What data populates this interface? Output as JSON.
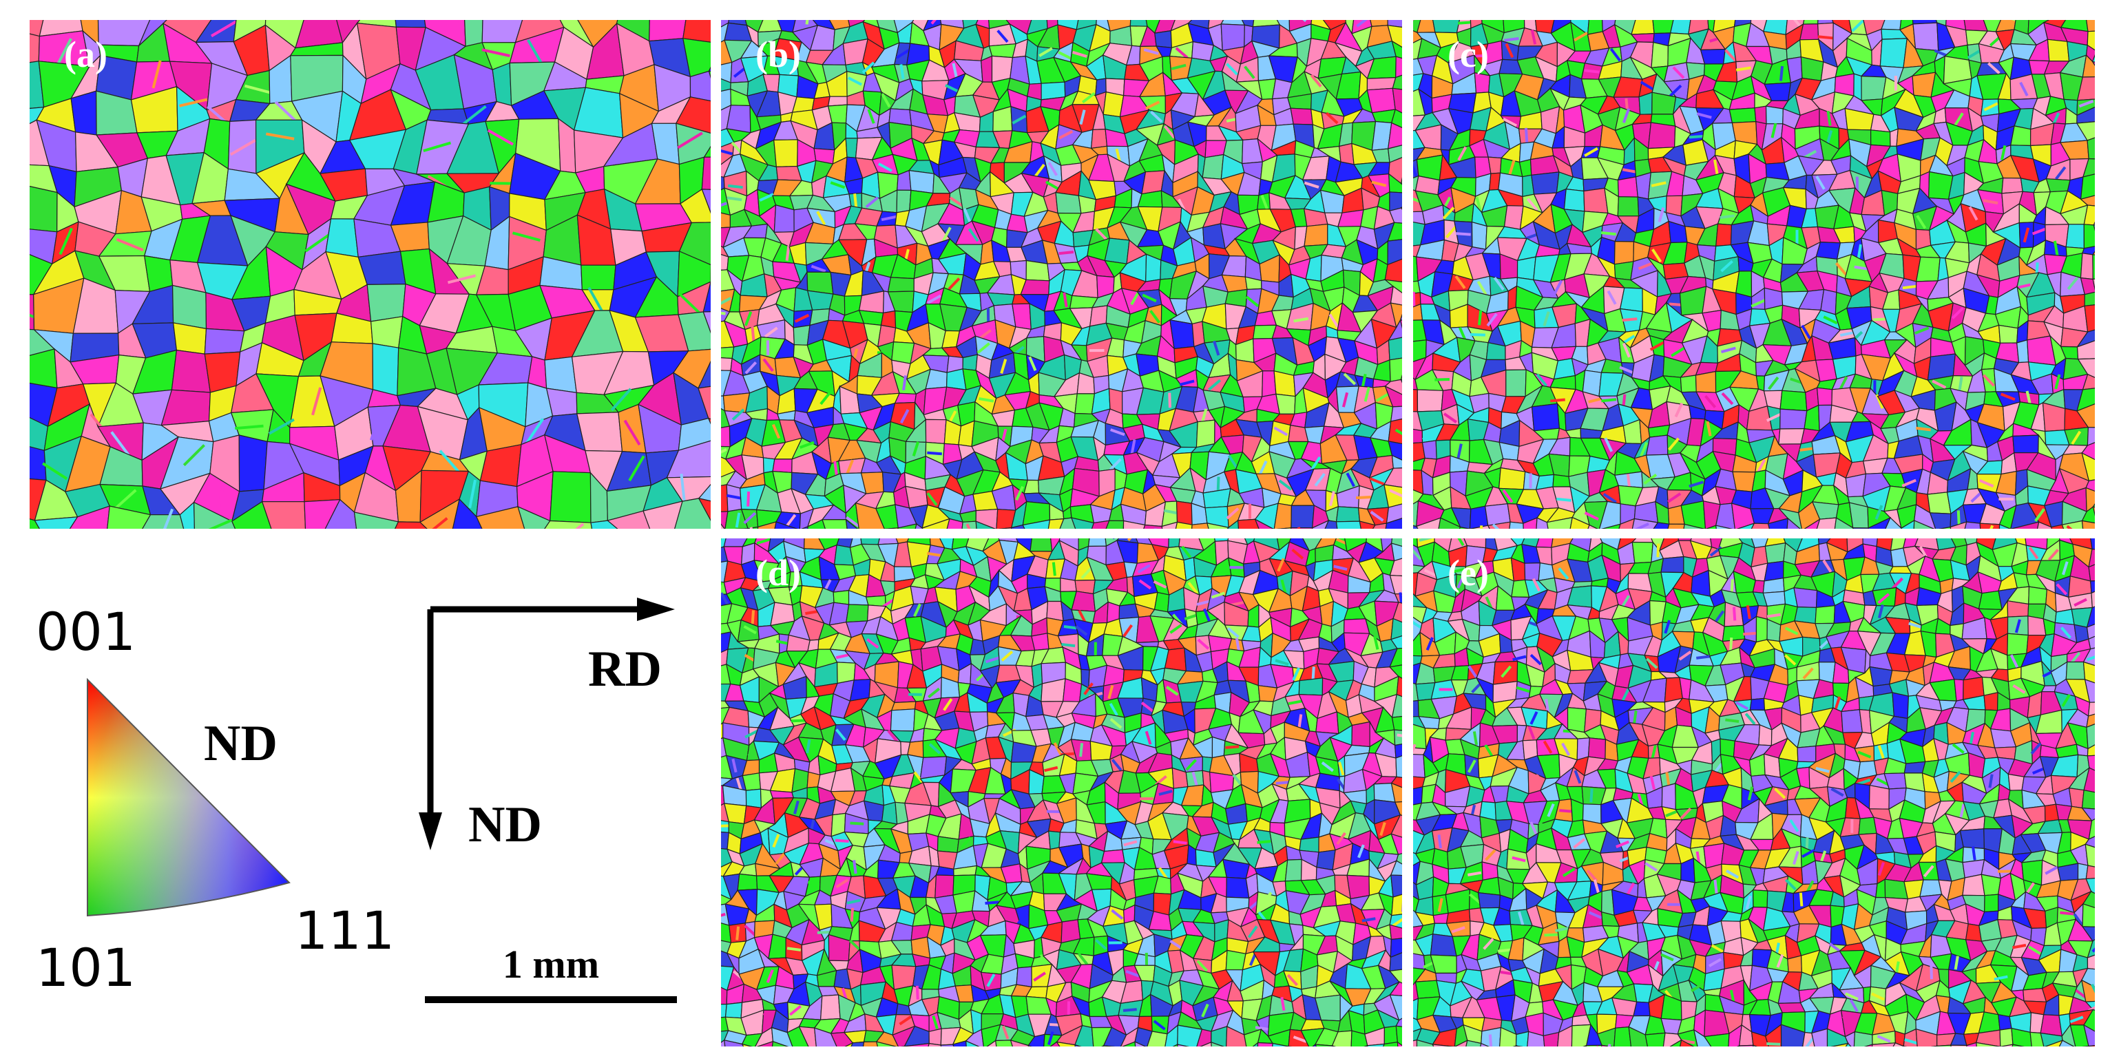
{
  "panels": [
    {
      "label": "(a)"
    },
    {
      "label": "(b)"
    },
    {
      "label": "(c)"
    },
    {
      "label": "(d)"
    },
    {
      "label": "(e)"
    }
  ],
  "legend": {
    "corner_001": "001",
    "corner_101": "101",
    "corner_111": "111",
    "direction": "ND"
  },
  "axes": {
    "horizontal": "RD",
    "vertical": "ND"
  },
  "scale_bar": {
    "label": "1 mm"
  }
}
